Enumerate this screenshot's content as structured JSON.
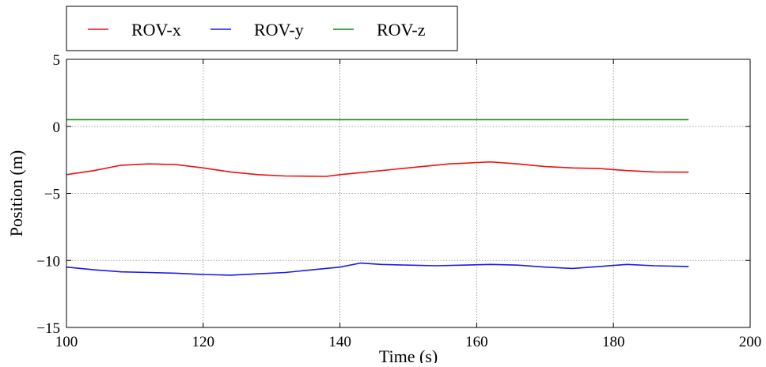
{
  "chart_data": {
    "type": "line",
    "title": "",
    "xlabel": "Time (s)",
    "ylabel": "Position (m)",
    "xlim": [
      100,
      200
    ],
    "ylim": [
      -15,
      5
    ],
    "xticks": [
      100,
      120,
      140,
      160,
      180,
      200
    ],
    "yticks": [
      5,
      0,
      -5,
      -10,
      -15
    ],
    "grid": true,
    "legend_position": "top-left (above plot)",
    "series": [
      {
        "name": "ROV-x",
        "color": "#ee1111",
        "x": [
          100,
          104,
          108,
          112,
          116,
          120,
          124,
          128,
          132,
          136,
          138,
          140,
          144,
          148,
          152,
          156,
          158,
          160,
          162,
          166,
          170,
          174,
          178,
          182,
          186,
          191
        ],
        "y": [
          -3.6,
          -3.3,
          -2.9,
          -2.8,
          -2.85,
          -3.1,
          -3.4,
          -3.6,
          -3.7,
          -3.72,
          -3.73,
          -3.6,
          -3.4,
          -3.2,
          -3.0,
          -2.8,
          -2.75,
          -2.7,
          -2.65,
          -2.8,
          -3.0,
          -3.1,
          -3.15,
          -3.3,
          -3.4,
          -3.42
        ]
      },
      {
        "name": "ROV-y",
        "color": "#1a1aee",
        "x": [
          100,
          104,
          108,
          112,
          116,
          120,
          124,
          128,
          132,
          136,
          140,
          143,
          146,
          150,
          154,
          158,
          162,
          166,
          170,
          174,
          178,
          182,
          186,
          191
        ],
        "y": [
          -10.5,
          -10.7,
          -10.85,
          -10.9,
          -10.95,
          -11.05,
          -11.1,
          -11.0,
          -10.9,
          -10.7,
          -10.5,
          -10.2,
          -10.3,
          -10.35,
          -10.4,
          -10.35,
          -10.3,
          -10.35,
          -10.5,
          -10.6,
          -10.45,
          -10.3,
          -10.4,
          -10.45
        ]
      },
      {
        "name": "ROV-z",
        "color": "#1a8a1a",
        "x": [
          100,
          191
        ],
        "y": [
          0.5,
          0.5
        ]
      }
    ]
  }
}
